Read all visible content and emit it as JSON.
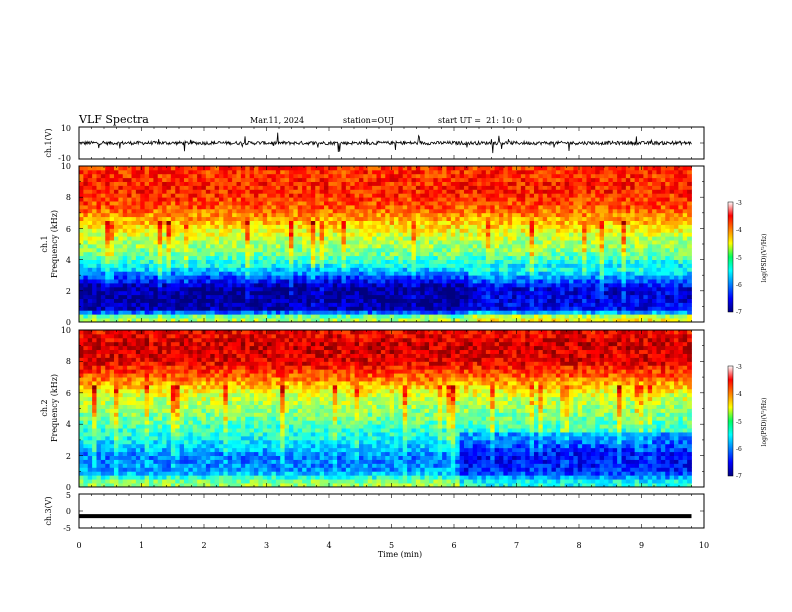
{
  "header": {
    "title": "VLF Spectra",
    "date": "Mar.11, 2024",
    "station": "station=OUJ",
    "start_ut": "start UT =  21: 10: 0"
  },
  "chart_data": [
    {
      "type": "line",
      "panel": "ch1-waveform",
      "ylabel": "ch.1(V)",
      "ylim": [
        -10,
        10
      ],
      "yticks": [
        "10",
        "-10"
      ],
      "xlim": [
        0,
        10
      ],
      "series_color": "#000000",
      "baseline": 0
    },
    {
      "type": "heatmap",
      "panel": "ch1-spectrogram",
      "ylabel_line1": "ch.1",
      "ylabel_line2": "Frequency (kHz)",
      "ylim": [
        0,
        10
      ],
      "yticks": [
        "0",
        "2",
        "4",
        "6",
        "8",
        "10"
      ],
      "xlim": [
        0,
        9.8
      ],
      "colorbar": {
        "label": "log(PSD)(V²/Hz)",
        "range": [
          -7,
          -3
        ],
        "ticks": [
          "-3",
          "-4",
          "-5",
          "-6",
          "-7"
        ],
        "colormap": "jet"
      },
      "frequency_profile_log_psd": [
        {
          "f": 0.3,
          "v": -4.8
        },
        {
          "f": 0.8,
          "v": -6.8
        },
        {
          "f": 1.5,
          "v": -6.9
        },
        {
          "f": 2.2,
          "v": -6.9
        },
        {
          "f": 2.9,
          "v": -6.2
        },
        {
          "f": 3.5,
          "v": -5.6
        },
        {
          "f": 4.5,
          "v": -5.0
        },
        {
          "f": 5.5,
          "v": -4.7
        },
        {
          "f": 6.5,
          "v": -4.2
        },
        {
          "f": 7.5,
          "v": -3.8
        },
        {
          "f": 8.5,
          "v": -3.6
        },
        {
          "f": 10.0,
          "v": -3.7
        }
      ]
    },
    {
      "type": "heatmap",
      "panel": "ch2-spectrogram",
      "ylabel_line1": "ch.2",
      "ylabel_line2": "Frequency (kHz)",
      "ylim": [
        0,
        10
      ],
      "yticks": [
        "0",
        "2",
        "4",
        "6",
        "8",
        "10"
      ],
      "xlim": [
        0,
        9.8
      ],
      "colorbar": {
        "label": "log(PSD)(V²/Hz)",
        "range": [
          -7,
          -3
        ],
        "ticks": [
          "-3",
          "-4",
          "-5",
          "-6",
          "-7"
        ],
        "colormap": "jet"
      },
      "frequency_profile_log_psd": [
        {
          "f": 0.3,
          "v": -4.9
        },
        {
          "f": 1.0,
          "v": -5.9
        },
        {
          "f": 2.0,
          "v": -6.0
        },
        {
          "f": 3.0,
          "v": -5.5
        },
        {
          "f": 4.0,
          "v": -5.2
        },
        {
          "f": 5.0,
          "v": -4.9
        },
        {
          "f": 6.0,
          "v": -4.6
        },
        {
          "f": 7.0,
          "v": -3.9
        },
        {
          "f": 8.0,
          "v": -3.4
        },
        {
          "f": 9.0,
          "v": -3.3
        },
        {
          "f": 10.0,
          "v": -3.5
        }
      ]
    },
    {
      "type": "line",
      "panel": "ch3-waveform",
      "ylabel": "ch.3(V)",
      "ylim": [
        -5,
        5
      ],
      "yticks": [
        "5",
        "0",
        "-5"
      ],
      "xlim": [
        0,
        10
      ],
      "baseline": -1.5,
      "series_color": "#000000",
      "xlabel": "Time (min)",
      "xticks": [
        "0",
        "1",
        "2",
        "3",
        "4",
        "5",
        "6",
        "7",
        "8",
        "9",
        "10"
      ]
    }
  ]
}
